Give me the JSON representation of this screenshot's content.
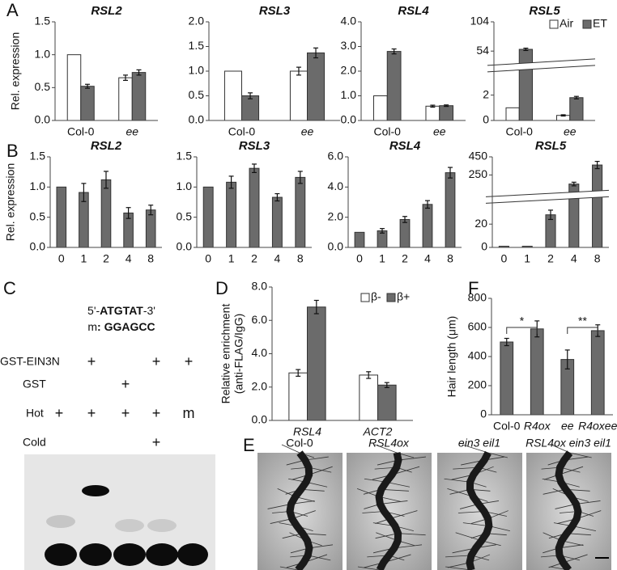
{
  "panel_labels": [
    "A",
    "B",
    "C",
    "D",
    "E",
    "F"
  ],
  "chart_data": [
    {
      "type": "bar",
      "title": "RSL2",
      "ylabel": "Rel. expression",
      "categories": [
        "Col-0",
        "ee"
      ],
      "series": [
        {
          "color": "#ffffff",
          "values": [
            1.0,
            0.65
          ],
          "errors": [
            null,
            0.04
          ]
        },
        {
          "color": "#6b6b6b",
          "values": [
            0.52,
            0.73
          ],
          "errors": [
            0.03,
            0.04
          ]
        }
      ],
      "ylim": [
        0,
        1.5
      ],
      "yticks": [
        {
          "value": 0,
          "label": "0.0"
        },
        0.5,
        {
          "value": 1,
          "label": "1.0"
        },
        1.5
      ]
    },
    {
      "type": "bar",
      "title": "RSL3",
      "categories": [
        "Col-0",
        "ee"
      ],
      "series": [
        {
          "color": "#ffffff",
          "values": [
            1.0,
            1.0
          ],
          "errors": [
            null,
            0.08
          ]
        },
        {
          "color": "#6b6b6b",
          "values": [
            0.5,
            1.37
          ],
          "errors": [
            0.06,
            0.1
          ]
        }
      ],
      "ylim": [
        0,
        2
      ],
      "yticks": [
        {
          "value": 0,
          "label": "0.0"
        },
        0.5,
        {
          "value": 1,
          "label": "1.0"
        },
        1.5,
        {
          "value": 2,
          "label": "2.0"
        }
      ]
    },
    {
      "type": "bar",
      "title": "RSL4",
      "categories": [
        "Col-0",
        "ee"
      ],
      "series": [
        {
          "color": "#ffffff",
          "values": [
            1.0,
            0.58
          ],
          "errors": [
            null,
            0.04
          ]
        },
        {
          "color": "#6b6b6b",
          "values": [
            2.8,
            0.6
          ],
          "errors": [
            0.1,
            0.03
          ]
        }
      ],
      "ylim": [
        0,
        4
      ],
      "yticks": [
        {
          "value": 0,
          "label": "0.0"
        },
        {
          "value": 1,
          "label": "1.0"
        },
        {
          "value": 2,
          "label": "2.0"
        },
        {
          "value": 3,
          "label": "3.0"
        },
        {
          "value": 4,
          "label": "4.0"
        }
      ]
    },
    {
      "type": "bar",
      "title": "RSL5",
      "categories": [
        "Col-0",
        "ee"
      ],
      "series": [
        {
          "name": "Air",
          "color": "#ffffff",
          "values": [
            1.0,
            0.4
          ],
          "errors": [
            null,
            0.05
          ]
        },
        {
          "name": "ET",
          "color": "#6b6b6b",
          "values": [
            57,
            1.8
          ],
          "errors": [
            2,
            0.1
          ]
        }
      ],
      "ylim": [
        0,
        104
      ],
      "ybreak": [
        3.5,
        45
      ],
      "yticks": [
        0,
        2,
        54,
        104
      ],
      "legend": "upper right"
    },
    {
      "type": "bar",
      "title": "RSL2",
      "ylabel": "Rel. expression",
      "categories": [
        "0",
        "1",
        "2",
        "4",
        "8"
      ],
      "series": [
        {
          "color": "#6b6b6b",
          "values": [
            1.0,
            0.91,
            1.12,
            0.57,
            0.62
          ],
          "errors": [
            null,
            0.15,
            0.14,
            0.09,
            0.08
          ]
        }
      ],
      "ylim": [
        0,
        1.5
      ],
      "yticks": [
        {
          "value": 0,
          "label": "0.0"
        },
        0.5,
        {
          "value": 1,
          "label": "1.0"
        },
        1.5
      ]
    },
    {
      "type": "bar",
      "title": "RSL3",
      "categories": [
        "0",
        "1",
        "2",
        "4",
        "8"
      ],
      "series": [
        {
          "color": "#6b6b6b",
          "values": [
            1.0,
            1.08,
            1.31,
            0.83,
            1.16
          ],
          "errors": [
            null,
            0.1,
            0.07,
            0.06,
            0.1
          ]
        }
      ],
      "ylim": [
        0,
        1.5
      ],
      "yticks": [
        {
          "value": 0,
          "label": "0.0"
        },
        0.5,
        {
          "value": 1,
          "label": "1.0"
        },
        1.5
      ]
    },
    {
      "type": "bar",
      "title": "RSL4",
      "categories": [
        "0",
        "1",
        "2",
        "4",
        "8"
      ],
      "series": [
        {
          "color": "#6b6b6b",
          "values": [
            1.0,
            1.1,
            1.85,
            2.85,
            4.95
          ],
          "errors": [
            null,
            0.15,
            0.2,
            0.25,
            0.35
          ]
        }
      ],
      "ylim": [
        0,
        6
      ],
      "yticks": [
        {
          "value": 0,
          "label": "0.0"
        },
        {
          "value": 2,
          "label": "2.0"
        },
        {
          "value": 4,
          "label": "4.0"
        },
        {
          "value": 6,
          "label": "6.0"
        }
      ]
    },
    {
      "type": "bar",
      "title": "RSL5",
      "categories": [
        "0",
        "1",
        "2",
        "4",
        "8"
      ],
      "series": [
        {
          "color": "#6b6b6b",
          "values": [
            1,
            1,
            28,
            150,
            360
          ],
          "errors": [
            null,
            null,
            4,
            20,
            40
          ]
        }
      ],
      "ylim": [
        0,
        450
      ],
      "ybreak": [
        35,
        100
      ],
      "yticks": [
        0,
        20,
        250,
        450
      ]
    },
    {
      "type": "bar",
      "ylabel": [
        "Relative enrichment",
        "(anti-FLAG/IgG)"
      ],
      "categories": [
        "RSL4",
        "ACT2"
      ],
      "series": [
        {
          "name": "β-",
          "color": "#ffffff",
          "values": [
            2.85,
            2.72
          ],
          "errors": [
            0.2,
            0.2
          ]
        },
        {
          "name": "β+",
          "color": "#6b6b6b",
          "values": [
            6.8,
            2.12
          ],
          "errors": [
            0.4,
            0.15
          ]
        }
      ],
      "ylim": [
        0,
        8
      ],
      "yticks": [
        {
          "value": 0,
          "label": "0.0"
        },
        {
          "value": 2,
          "label": "2.0"
        },
        {
          "value": 4,
          "label": "4.0"
        },
        {
          "value": 6,
          "label": "6.0"
        },
        {
          "value": 8,
          "label": "8.0"
        }
      ],
      "legend": "upper right"
    },
    {
      "type": "bar",
      "ylabel": "Hair length (μm)",
      "categories": [
        "Col-0",
        "R4ox",
        "ee",
        "R4oxee"
      ],
      "series": [
        {
          "color": "#6b6b6b",
          "values": [
            500,
            590,
            380,
            578
          ],
          "errors": [
            25,
            55,
            65,
            40
          ]
        }
      ],
      "ylim": [
        0,
        800
      ],
      "yticks": [
        0,
        200,
        400,
        600,
        800
      ],
      "significance": [
        "*",
        "**"
      ]
    }
  ],
  "gel": {
    "probe": [
      "5'-",
      "ATGTAT",
      "-3'"
    ],
    "mutant": [
      "m",
      ": GGAGCC"
    ],
    "rows": [
      {
        "label": "GST-EIN3N",
        "lanes": [
          null,
          "+",
          null,
          "+",
          "+"
        ]
      },
      {
        "label": "GST",
        "lanes": [
          null,
          null,
          "+",
          null,
          null
        ]
      },
      {
        "label": "Hot",
        "lanes": [
          "+",
          "+",
          "+",
          "+",
          "m"
        ]
      },
      {
        "label": "Cold",
        "lanes": [
          null,
          null,
          null,
          "+",
          null
        ]
      }
    ]
  },
  "images": {
    "labels": [
      "Col-0",
      "RSL4ox",
      "ein3 eil1",
      "RSL4ox ein3 eil1"
    ]
  }
}
